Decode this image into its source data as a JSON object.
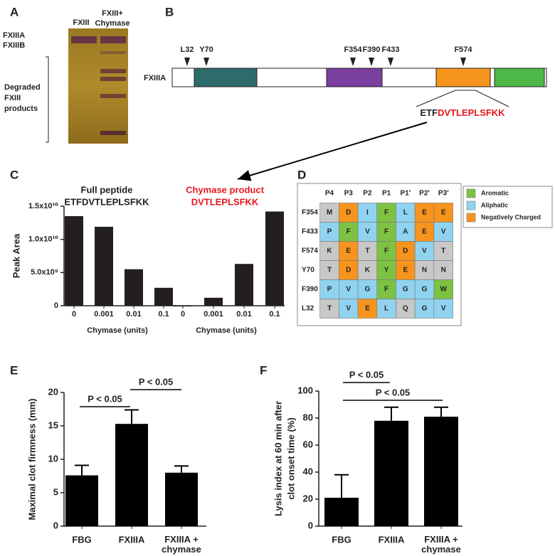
{
  "panel_labels": [
    "A",
    "B",
    "C",
    "D",
    "E",
    "F"
  ],
  "panel_a": {
    "lanes": [
      "FXIII",
      "FXIII+",
      "Chymase"
    ],
    "bands": [
      "FXIIIA",
      "FXIIIB"
    ],
    "bracket_label": [
      "Degraded",
      "FXIII",
      "products"
    ]
  },
  "panel_b": {
    "protein": "FXIIIA",
    "sites": [
      "L32",
      "Y70",
      "F354",
      "F390",
      "F433",
      "F574"
    ],
    "sequence_prefix": "ETF",
    "sequence_product": "DVTLEPLSFKK"
  },
  "panel_d": {
    "headers": [
      "P4",
      "P3",
      "P2",
      "P1",
      "P1′",
      "P2′",
      "P3′"
    ],
    "rows": [
      {
        "label": "F354",
        "cells": [
          "M",
          "D",
          "I",
          "F",
          "L",
          "E",
          "E"
        ],
        "colors": [
          "#c8c8c8",
          "#f7941d",
          "#8fd3f0",
          "#7dc242",
          "#8fd3f0",
          "#f7941d",
          "#f7941d"
        ]
      },
      {
        "label": "F433",
        "cells": [
          "P",
          "F",
          "V",
          "F",
          "A",
          "E",
          "V"
        ],
        "colors": [
          "#8fd3f0",
          "#7dc242",
          "#8fd3f0",
          "#7dc242",
          "#8fd3f0",
          "#f7941d",
          "#8fd3f0"
        ]
      },
      {
        "label": "F574",
        "cells": [
          "K",
          "E",
          "T",
          "F",
          "D",
          "V",
          "T"
        ],
        "colors": [
          "#c8c8c8",
          "#f7941d",
          "#c8c8c8",
          "#7dc242",
          "#f7941d",
          "#8fd3f0",
          "#c8c8c8"
        ]
      },
      {
        "label": "Y70",
        "cells": [
          "T",
          "D",
          "K",
          "Y",
          "E",
          "N",
          "N"
        ],
        "colors": [
          "#c8c8c8",
          "#f7941d",
          "#c8c8c8",
          "#7dc242",
          "#f7941d",
          "#c8c8c8",
          "#c8c8c8"
        ]
      },
      {
        "label": "F390",
        "cells": [
          "P",
          "V",
          "G",
          "F",
          "G",
          "G",
          "W"
        ],
        "colors": [
          "#8fd3f0",
          "#8fd3f0",
          "#8fd3f0",
          "#7dc242",
          "#8fd3f0",
          "#8fd3f0",
          "#7dc242"
        ]
      },
      {
        "label": "L32",
        "cells": [
          "T",
          "V",
          "E",
          "L",
          "Q",
          "G",
          "V"
        ],
        "colors": [
          "#c8c8c8",
          "#8fd3f0",
          "#f7941d",
          "#8fd3f0",
          "#c8c8c8",
          "#8fd3f0",
          "#8fd3f0"
        ]
      }
    ],
    "legend": [
      {
        "name": "Aromatic",
        "color": "#7dc242"
      },
      {
        "name": "Aliphatic",
        "color": "#8fd3f0"
      },
      {
        "name": "Negatively Charged",
        "color": "#f7941d"
      }
    ]
  },
  "chart_data": [
    {
      "type": "bar",
      "title": [
        "Full peptide",
        "ETFDVTLEPLSFKK"
      ],
      "title_color": "#231f20",
      "ylabel": [
        "Peak Area"
      ],
      "xlabel": "Chymase (units)",
      "categories": [
        "0",
        "0.001",
        "0.01",
        "0.1"
      ],
      "values": [
        13500000000,
        11900000000,
        5500000000,
        2700000000
      ],
      "color": "#231f20",
      "ylim": [
        0,
        15000000000
      ],
      "yticks": [
        0,
        {
          "value": 5000000000,
          "label": "5.0x10⁹"
        },
        {
          "value": 10000000000,
          "label": "1.0x10¹⁰"
        },
        {
          "value": 15000000000,
          "label": "1.5x10¹⁰"
        }
      ]
    },
    {
      "type": "bar",
      "title": [
        "Chymase product",
        "DVTLEPLSFKK"
      ],
      "title_color": "#e8161b",
      "xlabel": "Chymase (units)",
      "categories": [
        "0",
        "0.001",
        "0.01",
        "0.1"
      ],
      "values": [
        0,
        1200000000,
        6300000000,
        14200000000
      ],
      "color": "#231f20",
      "ylim": [
        0,
        15000000000
      ]
    },
    {
      "type": "bar",
      "ylabel": [
        "Maximal clot firmness (mm)"
      ],
      "categories": [
        "FBG",
        "FXIIIA",
        "FXIIIA + chymase"
      ],
      "values": [
        7.6,
        15.3,
        8.0
      ],
      "errors": [
        1.5,
        2.1,
        1.0
      ],
      "color": "#000000",
      "ylim": [
        0,
        20
      ],
      "yticks": [
        0,
        5,
        10,
        15,
        20
      ],
      "annotations": [
        "P < 0.05",
        "P < 0.05"
      ]
    },
    {
      "type": "bar",
      "ylabel": [
        "Lysis index at 60 min after",
        "clot onset time (%)"
      ],
      "categories": [
        "FBG",
        "FXIIIA",
        "FXIIIA + chymase"
      ],
      "values": [
        21,
        78,
        81
      ],
      "errors": [
        17,
        10,
        7
      ],
      "color": "#000000",
      "ylim": [
        0,
        100
      ],
      "yticks": [
        0,
        20,
        40,
        60,
        80,
        100
      ],
      "annotations": [
        "P < 0.05",
        "P < 0.05"
      ]
    }
  ]
}
